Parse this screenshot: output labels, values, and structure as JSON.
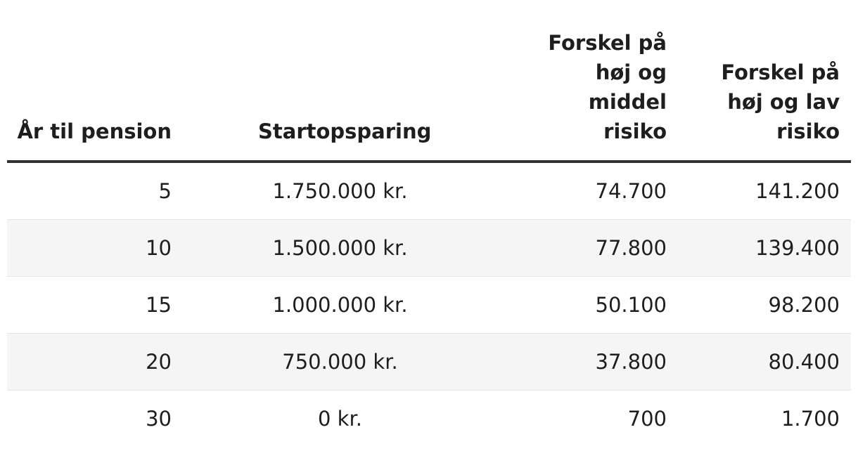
{
  "table": {
    "headers": [
      "År til pension",
      "Startopsparing",
      "Forskel på høj og middel risiko",
      "Forskel på høj og lav risiko"
    ],
    "rows": [
      [
        "5",
        "1.750.000 kr.",
        "74.700",
        "141.200"
      ],
      [
        "10",
        "1.500.000 kr.",
        "77.800",
        "139.400"
      ],
      [
        "15",
        "1.000.000 kr.",
        "50.100",
        "98.200"
      ],
      [
        "20",
        "750.000 kr.",
        "37.800",
        "80.400"
      ],
      [
        "30",
        "0 kr.",
        "700",
        "1.700"
      ]
    ]
  }
}
